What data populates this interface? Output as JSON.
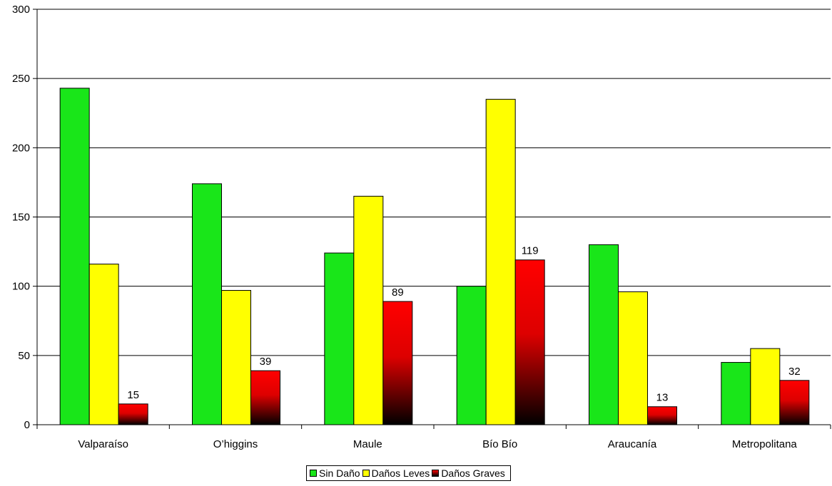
{
  "chart_data": {
    "type": "bar",
    "categories": [
      "Valparaíso",
      "O’higgins",
      "Maule",
      "Bío Bío",
      "Araucanía",
      "Metropolitana"
    ],
    "series": [
      {
        "name": "Sin Daño",
        "values": [
          243,
          174,
          124,
          100,
          130,
          45
        ],
        "color": "#19e619",
        "labels": []
      },
      {
        "name": "Daños Leves",
        "values": [
          116,
          97,
          165,
          235,
          96,
          55
        ],
        "color": "#ffff00",
        "labels": []
      },
      {
        "name": "Daños Graves",
        "values": [
          15,
          39,
          89,
          119,
          13,
          32
        ],
        "color": "#ff0000",
        "gradient_to": "#000000",
        "labels": [
          "15",
          "39",
          "89",
          "119",
          "13",
          "32"
        ]
      }
    ],
    "ylim": [
      0,
      300
    ],
    "yticks": [
      0,
      50,
      100,
      150,
      200,
      250,
      300
    ],
    "grid": true,
    "legend_position": "bottom"
  }
}
